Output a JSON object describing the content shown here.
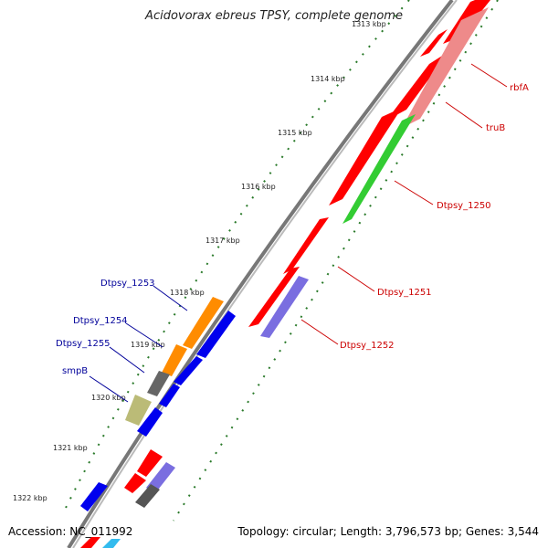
{
  "title": "Acidovorax ebreus TPSY, complete genome",
  "footer": {
    "accession": "Accession: NC_011992",
    "topology": "Topology: circular; Length: 3,796,573 bp; Genes: 3,544"
  },
  "colors": {
    "forward_label": "#cc0000",
    "reverse_label": "#00009a",
    "backbone": "#808080",
    "tick": "#2a7a2a",
    "cds_forward": "#ff0000",
    "cds_reverse": "#0000ee",
    "rRNA_like": "#ff8c00",
    "gc": "#33cc33"
  },
  "ticks": [
    "1313 kbp",
    "1314 kbp",
    "1315 kbp",
    "1316 kbp",
    "1317 kbp",
    "1318 kbp",
    "1319 kbp",
    "1320 kbp",
    "1321 kbp",
    "1322 kbp"
  ],
  "gene_labels_forward": [
    "rbfA",
    "truB",
    "Dtpsy_1250",
    "Dtpsy_1251",
    "Dtpsy_1252"
  ],
  "gene_labels_reverse": [
    "Dtpsy_1253",
    "Dtpsy_1254",
    "Dtpsy_1255",
    "smpB"
  ]
}
